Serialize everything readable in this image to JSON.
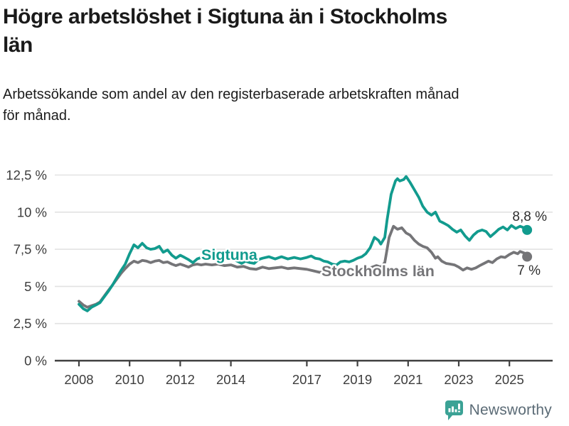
{
  "title": "Högre arbetslöshet i Sigtuna än i Stockholms\nlän",
  "subtitle": "Arbetssökande som andel av den registerbaserade arbetskraften månad\nför månad.",
  "footer": {
    "brand": "Newsworthy"
  },
  "colors": {
    "sigtuna": "#129b8e",
    "stockholm": "#757578",
    "grid": "#e2e2e2",
    "axis": "#404040",
    "tick_label": "#3d3d3d",
    "value_label": "#2e2e2e",
    "logo_icon": "#3ba295",
    "logo_text": "#5b6b76"
  },
  "chart_data": {
    "type": "line",
    "title": "Högre arbetslöshet i Sigtuna än i Stockholms län",
    "subtitle": "Arbetssökande som andel av den registerbaserade arbetskraften månad för månad.",
    "xlabel": "",
    "ylabel": "",
    "grid": "horizontal",
    "legend_position": "inline-labels",
    "ylim": [
      0,
      13.5
    ],
    "xlim": [
      2007,
      2026.7
    ],
    "y_ticks": [
      {
        "value": 0,
        "label": "0 %"
      },
      {
        "value": 2.5,
        "label": "2,5 %"
      },
      {
        "value": 5,
        "label": "5 %"
      },
      {
        "value": 7.5,
        "label": "7,5 %"
      },
      {
        "value": 10,
        "label": "10 %"
      },
      {
        "value": 12.5,
        "label": "12,5 %"
      }
    ],
    "x_ticks": [
      {
        "value": 2008,
        "label": "2008"
      },
      {
        "value": 2010,
        "label": "2010"
      },
      {
        "value": 2012,
        "label": "2012"
      },
      {
        "value": 2014,
        "label": "2014"
      },
      {
        "value": 2017,
        "label": "2017"
      },
      {
        "value": 2019,
        "label": "2019"
      },
      {
        "value": 2021,
        "label": "2021"
      },
      {
        "value": 2023,
        "label": "2023"
      },
      {
        "value": 2025,
        "label": "2025"
      }
    ],
    "series": [
      {
        "name": "Sigtuna",
        "color": "#129b8e",
        "end_label": "8,8 %",
        "end_value": 8.8,
        "points": [
          [
            2008.0,
            3.8
          ],
          [
            2008.17,
            3.5
          ],
          [
            2008.33,
            3.35
          ],
          [
            2008.5,
            3.6
          ],
          [
            2008.67,
            3.75
          ],
          [
            2008.83,
            3.9
          ],
          [
            2009.0,
            4.3
          ],
          [
            2009.17,
            4.7
          ],
          [
            2009.33,
            5.1
          ],
          [
            2009.5,
            5.6
          ],
          [
            2009.67,
            6.1
          ],
          [
            2009.83,
            6.5
          ],
          [
            2010.0,
            7.2
          ],
          [
            2010.17,
            7.8
          ],
          [
            2010.33,
            7.6
          ],
          [
            2010.5,
            7.9
          ],
          [
            2010.67,
            7.6
          ],
          [
            2010.83,
            7.5
          ],
          [
            2011.0,
            7.55
          ],
          [
            2011.17,
            7.7
          ],
          [
            2011.33,
            7.3
          ],
          [
            2011.5,
            7.45
          ],
          [
            2011.67,
            7.1
          ],
          [
            2011.83,
            6.9
          ],
          [
            2012.0,
            7.1
          ],
          [
            2012.17,
            6.95
          ],
          [
            2012.33,
            6.8
          ],
          [
            2012.5,
            6.6
          ],
          [
            2012.67,
            6.85
          ],
          [
            2012.83,
            6.95
          ],
          [
            2013.0,
            7.05
          ],
          [
            2013.25,
            6.9
          ],
          [
            2013.5,
            7.0
          ],
          [
            2013.75,
            6.9
          ],
          [
            2014.0,
            6.95
          ],
          [
            2014.25,
            6.7
          ],
          [
            2014.42,
            6.55
          ],
          [
            2014.58,
            6.7
          ],
          [
            2014.75,
            6.6
          ],
          [
            2014.92,
            6.55
          ],
          [
            2015.08,
            6.8
          ],
          [
            2015.25,
            6.9
          ],
          [
            2015.5,
            7.0
          ],
          [
            2015.75,
            6.85
          ],
          [
            2016.0,
            7.0
          ],
          [
            2016.25,
            6.85
          ],
          [
            2016.5,
            6.95
          ],
          [
            2016.75,
            6.85
          ],
          [
            2017.0,
            6.95
          ],
          [
            2017.17,
            7.05
          ],
          [
            2017.33,
            6.9
          ],
          [
            2017.5,
            6.85
          ],
          [
            2017.67,
            6.7
          ],
          [
            2017.83,
            6.65
          ],
          [
            2018.0,
            6.5
          ],
          [
            2018.17,
            6.45
          ],
          [
            2018.33,
            6.65
          ],
          [
            2018.5,
            6.7
          ],
          [
            2018.67,
            6.65
          ],
          [
            2018.83,
            6.75
          ],
          [
            2019.0,
            6.9
          ],
          [
            2019.17,
            7.0
          ],
          [
            2019.33,
            7.2
          ],
          [
            2019.5,
            7.6
          ],
          [
            2019.67,
            8.3
          ],
          [
            2019.83,
            8.1
          ],
          [
            2019.92,
            7.85
          ],
          [
            2020.08,
            8.3
          ],
          [
            2020.17,
            9.5
          ],
          [
            2020.33,
            11.2
          ],
          [
            2020.5,
            12.1
          ],
          [
            2020.58,
            12.25
          ],
          [
            2020.67,
            12.1
          ],
          [
            2020.83,
            12.2
          ],
          [
            2020.92,
            12.4
          ],
          [
            2021.08,
            12.0
          ],
          [
            2021.25,
            11.5
          ],
          [
            2021.42,
            11.0
          ],
          [
            2021.58,
            10.4
          ],
          [
            2021.75,
            10.0
          ],
          [
            2021.92,
            9.8
          ],
          [
            2022.08,
            10.0
          ],
          [
            2022.25,
            9.4
          ],
          [
            2022.42,
            9.25
          ],
          [
            2022.58,
            9.1
          ],
          [
            2022.75,
            8.85
          ],
          [
            2022.92,
            8.65
          ],
          [
            2023.08,
            8.8
          ],
          [
            2023.25,
            8.4
          ],
          [
            2023.42,
            8.1
          ],
          [
            2023.58,
            8.45
          ],
          [
            2023.75,
            8.7
          ],
          [
            2023.92,
            8.8
          ],
          [
            2024.08,
            8.7
          ],
          [
            2024.25,
            8.35
          ],
          [
            2024.42,
            8.6
          ],
          [
            2024.58,
            8.85
          ],
          [
            2024.75,
            9.0
          ],
          [
            2024.92,
            8.8
          ],
          [
            2025.08,
            9.1
          ],
          [
            2025.25,
            8.9
          ],
          [
            2025.42,
            9.05
          ],
          [
            2025.58,
            8.95
          ],
          [
            2025.7,
            8.8
          ]
        ]
      },
      {
        "name": "Stockholms län",
        "color": "#757578",
        "end_label": "7 %",
        "end_value": 7.0,
        "points": [
          [
            2008.0,
            4.0
          ],
          [
            2008.17,
            3.75
          ],
          [
            2008.33,
            3.6
          ],
          [
            2008.5,
            3.7
          ],
          [
            2008.67,
            3.8
          ],
          [
            2008.83,
            3.95
          ],
          [
            2009.0,
            4.35
          ],
          [
            2009.17,
            4.75
          ],
          [
            2009.33,
            5.1
          ],
          [
            2009.5,
            5.5
          ],
          [
            2009.67,
            5.9
          ],
          [
            2009.83,
            6.2
          ],
          [
            2010.0,
            6.5
          ],
          [
            2010.17,
            6.7
          ],
          [
            2010.33,
            6.6
          ],
          [
            2010.5,
            6.75
          ],
          [
            2010.67,
            6.7
          ],
          [
            2010.83,
            6.6
          ],
          [
            2011.0,
            6.7
          ],
          [
            2011.17,
            6.75
          ],
          [
            2011.33,
            6.6
          ],
          [
            2011.5,
            6.65
          ],
          [
            2011.67,
            6.5
          ],
          [
            2011.83,
            6.4
          ],
          [
            2012.0,
            6.5
          ],
          [
            2012.17,
            6.4
          ],
          [
            2012.33,
            6.3
          ],
          [
            2012.5,
            6.45
          ],
          [
            2012.67,
            6.5
          ],
          [
            2012.83,
            6.45
          ],
          [
            2013.0,
            6.5
          ],
          [
            2013.25,
            6.45
          ],
          [
            2013.5,
            6.5
          ],
          [
            2013.75,
            6.4
          ],
          [
            2014.0,
            6.45
          ],
          [
            2014.25,
            6.3
          ],
          [
            2014.5,
            6.35
          ],
          [
            2014.75,
            6.2
          ],
          [
            2015.0,
            6.15
          ],
          [
            2015.25,
            6.3
          ],
          [
            2015.5,
            6.2
          ],
          [
            2015.75,
            6.25
          ],
          [
            2016.0,
            6.3
          ],
          [
            2016.25,
            6.2
          ],
          [
            2016.5,
            6.25
          ],
          [
            2016.75,
            6.2
          ],
          [
            2017.0,
            6.15
          ],
          [
            2017.25,
            6.05
          ],
          [
            2017.5,
            5.95
          ],
          [
            2017.75,
            6.0
          ],
          [
            2018.0,
            5.9
          ],
          [
            2018.25,
            5.95
          ],
          [
            2018.5,
            6.0
          ],
          [
            2018.75,
            6.05
          ],
          [
            2019.0,
            6.1
          ],
          [
            2019.25,
            6.15
          ],
          [
            2019.5,
            6.25
          ],
          [
            2019.75,
            6.4
          ],
          [
            2019.92,
            6.3
          ],
          [
            2020.08,
            6.6
          ],
          [
            2020.25,
            8.3
          ],
          [
            2020.42,
            9.05
          ],
          [
            2020.58,
            8.85
          ],
          [
            2020.75,
            8.95
          ],
          [
            2020.92,
            8.6
          ],
          [
            2021.08,
            8.45
          ],
          [
            2021.25,
            8.1
          ],
          [
            2021.42,
            7.85
          ],
          [
            2021.58,
            7.7
          ],
          [
            2021.75,
            7.6
          ],
          [
            2021.92,
            7.3
          ],
          [
            2022.08,
            6.9
          ],
          [
            2022.17,
            7.0
          ],
          [
            2022.33,
            6.7
          ],
          [
            2022.5,
            6.55
          ],
          [
            2022.67,
            6.5
          ],
          [
            2022.83,
            6.45
          ],
          [
            2023.0,
            6.3
          ],
          [
            2023.17,
            6.1
          ],
          [
            2023.33,
            6.25
          ],
          [
            2023.5,
            6.15
          ],
          [
            2023.67,
            6.25
          ],
          [
            2023.83,
            6.4
          ],
          [
            2024.0,
            6.55
          ],
          [
            2024.17,
            6.7
          ],
          [
            2024.33,
            6.6
          ],
          [
            2024.5,
            6.85
          ],
          [
            2024.67,
            7.0
          ],
          [
            2024.83,
            6.95
          ],
          [
            2025.0,
            7.15
          ],
          [
            2025.17,
            7.3
          ],
          [
            2025.33,
            7.2
          ],
          [
            2025.42,
            7.35
          ],
          [
            2025.58,
            7.25
          ],
          [
            2025.7,
            7.0
          ]
        ]
      }
    ]
  }
}
